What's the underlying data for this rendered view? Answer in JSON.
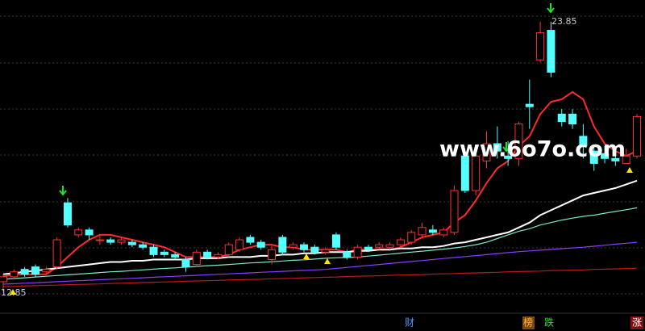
{
  "chart_data": {
    "type": "candlestick",
    "watermark": "www.6o7o.com",
    "annotations": [
      {
        "text": "23.85",
        "value": 23.85
      },
      {
        "text": "12.85",
        "value": 12.85
      }
    ],
    "footer_labels": [
      "财",
      "榜",
      "跌",
      "涨"
    ],
    "ylim": [
      11.3,
      24.73
    ],
    "up_color": "#ff3030",
    "down_color": "#54ffff",
    "candles": [
      {
        "open": 13.3,
        "high": 13.6,
        "low": 12.9,
        "close": 13.5
      },
      {
        "open": 13.5,
        "high": 13.8,
        "low": 13.4,
        "close": 13.7
      },
      {
        "open": 13.8,
        "high": 13.9,
        "low": 13.5,
        "close": 13.6
      },
      {
        "open": 13.9,
        "high": 14.0,
        "low": 13.5,
        "close": 13.6
      },
      {
        "open": 13.7,
        "high": 13.9,
        "low": 13.6,
        "close": 13.8
      },
      {
        "open": 13.9,
        "high": 15.1,
        "low": 13.8,
        "close": 15.0
      },
      {
        "open": 16.5,
        "high": 16.7,
        "low": 15.5,
        "close": 15.6
      },
      {
        "open": 15.2,
        "high": 15.5,
        "low": 15.1,
        "close": 15.4
      },
      {
        "open": 15.4,
        "high": 15.5,
        "low": 15.0,
        "close": 15.2
      },
      {
        "open": 15.0,
        "high": 15.2,
        "low": 14.8,
        "close": 15.0
      },
      {
        "open": 15.0,
        "high": 15.1,
        "low": 14.8,
        "close": 14.9
      },
      {
        "open": 14.9,
        "high": 15.1,
        "low": 14.8,
        "close": 15.0
      },
      {
        "open": 14.9,
        "high": 15.0,
        "low": 14.7,
        "close": 14.8
      },
      {
        "open": 14.8,
        "high": 14.9,
        "low": 14.6,
        "close": 14.7
      },
      {
        "open": 14.7,
        "high": 14.8,
        "low": 14.3,
        "close": 14.4
      },
      {
        "open": 14.5,
        "high": 14.6,
        "low": 14.3,
        "close": 14.4
      },
      {
        "open": 14.4,
        "high": 14.5,
        "low": 14.2,
        "close": 14.3
      },
      {
        "open": 14.2,
        "high": 14.3,
        "low": 13.7,
        "close": 13.9
      },
      {
        "open": 14.0,
        "high": 14.6,
        "low": 13.9,
        "close": 14.5
      },
      {
        "open": 14.5,
        "high": 14.6,
        "low": 14.2,
        "close": 14.3
      },
      {
        "open": 14.3,
        "high": 14.5,
        "low": 14.2,
        "close": 14.4
      },
      {
        "open": 14.4,
        "high": 14.9,
        "low": 14.3,
        "close": 14.8
      },
      {
        "open": 14.6,
        "high": 15.1,
        "low": 14.5,
        "close": 15.0
      },
      {
        "open": 15.1,
        "high": 15.2,
        "low": 14.8,
        "close": 14.9
      },
      {
        "open": 14.9,
        "high": 15.0,
        "low": 14.6,
        "close": 14.7
      },
      {
        "open": 14.2,
        "high": 14.8,
        "low": 14.0,
        "close": 14.6
      },
      {
        "open": 15.1,
        "high": 15.2,
        "low": 14.4,
        "close": 14.5
      },
      {
        "open": 14.7,
        "high": 14.9,
        "low": 14.6,
        "close": 14.8
      },
      {
        "open": 14.8,
        "high": 14.9,
        "low": 14.5,
        "close": 14.6
      },
      {
        "open": 14.7,
        "high": 14.8,
        "low": 14.4,
        "close": 14.5
      },
      {
        "open": 14.5,
        "high": 14.7,
        "low": 14.4,
        "close": 14.6
      },
      {
        "open": 15.2,
        "high": 15.3,
        "low": 14.6,
        "close": 14.7
      },
      {
        "open": 14.5,
        "high": 14.6,
        "low": 14.2,
        "close": 14.3
      },
      {
        "open": 14.3,
        "high": 14.8,
        "low": 14.2,
        "close": 14.7
      },
      {
        "open": 14.7,
        "high": 14.8,
        "low": 14.5,
        "close": 14.6
      },
      {
        "open": 14.7,
        "high": 14.9,
        "low": 14.6,
        "close": 14.8
      },
      {
        "open": 14.7,
        "high": 14.9,
        "low": 14.6,
        "close": 14.8
      },
      {
        "open": 14.8,
        "high": 15.1,
        "low": 14.7,
        "close": 15.0
      },
      {
        "open": 14.9,
        "high": 15.4,
        "low": 14.8,
        "close": 15.3
      },
      {
        "open": 15.2,
        "high": 15.7,
        "low": 15.1,
        "close": 15.5
      },
      {
        "open": 15.4,
        "high": 15.6,
        "low": 15.2,
        "close": 15.3
      },
      {
        "open": 15.2,
        "high": 15.5,
        "low": 15.1,
        "close": 15.4
      },
      {
        "open": 15.3,
        "high": 17.2,
        "low": 15.2,
        "close": 17.0
      },
      {
        "open": 18.4,
        "high": 18.5,
        "low": 16.9,
        "close": 17.0
      },
      {
        "open": 17.0,
        "high": 18.5,
        "low": 16.8,
        "close": 18.4
      },
      {
        "open": 18.2,
        "high": 19.4,
        "low": 17.9,
        "close": 18.9
      },
      {
        "open": 18.9,
        "high": 19.6,
        "low": 18.3,
        "close": 18.6
      },
      {
        "open": 18.4,
        "high": 19.0,
        "low": 18.0,
        "close": 18.3
      },
      {
        "open": 18.3,
        "high": 19.8,
        "low": 18.0,
        "close": 19.7
      },
      {
        "open": 20.5,
        "high": 21.5,
        "low": 19.5,
        "close": 20.4
      },
      {
        "open": 22.3,
        "high": 23.85,
        "low": 22.2,
        "close": 23.4
      },
      {
        "open": 23.5,
        "high": 23.85,
        "low": 21.6,
        "close": 21.8
      },
      {
        "open": 20.1,
        "high": 20.3,
        "low": 19.6,
        "close": 19.8
      },
      {
        "open": 20.1,
        "high": 20.3,
        "low": 19.5,
        "close": 19.7
      },
      {
        "open": 19.2,
        "high": 19.7,
        "low": 18.3,
        "close": 18.8
      },
      {
        "open": 18.6,
        "high": 18.8,
        "low": 17.8,
        "close": 18.1
      },
      {
        "open": 18.5,
        "high": 18.8,
        "low": 18.1,
        "close": 18.3
      },
      {
        "open": 18.3,
        "high": 18.6,
        "low": 18.0,
        "close": 18.2
      },
      {
        "open": 18.1,
        "high": 18.7,
        "low": 18.1,
        "close": 18.4
      },
      {
        "open": 18.4,
        "high": 20.1,
        "low": 18.3,
        "close": 20.0
      }
    ],
    "lines": [
      {
        "color": "#ff2a2a",
        "values": [
          13.5,
          13.6,
          13.6,
          13.6,
          13.6,
          13.9,
          14.3,
          14.7,
          15.0,
          15.2,
          15.2,
          15.1,
          15.0,
          14.9,
          14.8,
          14.7,
          14.5,
          14.3,
          14.3,
          14.3,
          14.3,
          14.4,
          14.6,
          14.7,
          14.8,
          14.8,
          14.7,
          14.7,
          14.6,
          14.6,
          14.6,
          14.6,
          14.5,
          14.6,
          14.6,
          14.6,
          14.6,
          14.7,
          14.9,
          15.1,
          15.2,
          15.3,
          15.7,
          16.0,
          16.6,
          17.3,
          17.9,
          18.2,
          18.8,
          19.2,
          20.1,
          20.6,
          20.7,
          21.0,
          20.7,
          19.6,
          18.9,
          18.6,
          18.4,
          18.6
        ]
      },
      {
        "color": "#ffffff",
        "values": [
          13.6,
          13.65,
          13.7,
          13.75,
          13.8,
          13.85,
          13.9,
          13.95,
          14.0,
          14.05,
          14.1,
          14.1,
          14.15,
          14.15,
          14.2,
          14.2,
          14.2,
          14.2,
          14.25,
          14.25,
          14.25,
          14.3,
          14.3,
          14.3,
          14.35,
          14.35,
          14.4,
          14.4,
          14.45,
          14.45,
          14.5,
          14.5,
          14.5,
          14.55,
          14.55,
          14.6,
          14.6,
          14.65,
          14.65,
          14.7,
          14.7,
          14.75,
          14.85,
          14.9,
          15.0,
          15.1,
          15.2,
          15.3,
          15.5,
          15.7,
          16.0,
          16.2,
          16.4,
          16.6,
          16.8,
          16.9,
          17.0,
          17.1,
          17.25,
          17.4
        ]
      },
      {
        "color": "#7fe8c8",
        "values": [
          13.4,
          13.43,
          13.46,
          13.49,
          13.52,
          13.55,
          13.58,
          13.61,
          13.64,
          13.67,
          13.7,
          13.72,
          13.75,
          13.78,
          13.81,
          13.84,
          13.86,
          13.89,
          13.92,
          13.95,
          13.97,
          14.0,
          14.03,
          14.06,
          14.08,
          14.11,
          14.14,
          14.17,
          14.19,
          14.22,
          14.25,
          14.27,
          14.28,
          14.3,
          14.34,
          14.38,
          14.42,
          14.46,
          14.5,
          14.54,
          14.58,
          14.62,
          14.67,
          14.73,
          14.8,
          14.9,
          15.05,
          15.2,
          15.35,
          15.45,
          15.6,
          15.7,
          15.8,
          15.88,
          15.95,
          16.0,
          16.08,
          16.15,
          16.22,
          16.3
        ]
      },
      {
        "color": "#8a3cff",
        "values": [
          13.2,
          13.22,
          13.24,
          13.26,
          13.28,
          13.3,
          13.32,
          13.34,
          13.36,
          13.38,
          13.4,
          13.42,
          13.44,
          13.46,
          13.48,
          13.5,
          13.52,
          13.54,
          13.56,
          13.58,
          13.6,
          13.62,
          13.64,
          13.66,
          13.68,
          13.7,
          13.72,
          13.74,
          13.76,
          13.78,
          13.8,
          13.84,
          13.88,
          13.92,
          13.96,
          14.0,
          14.04,
          14.08,
          14.12,
          14.16,
          14.2,
          14.24,
          14.28,
          14.32,
          14.36,
          14.4,
          14.44,
          14.48,
          14.52,
          14.55,
          14.58,
          14.61,
          14.64,
          14.67,
          14.7,
          14.74,
          14.78,
          14.82,
          14.86,
          14.9
        ]
      },
      {
        "color": "#c01818",
        "values": [
          13.1,
          13.11,
          13.13,
          13.14,
          13.15,
          13.16,
          13.18,
          13.19,
          13.2,
          13.21,
          13.23,
          13.24,
          13.25,
          13.27,
          13.28,
          13.29,
          13.3,
          13.32,
          13.33,
          13.34,
          13.35,
          13.37,
          13.38,
          13.39,
          13.4,
          13.42,
          13.43,
          13.44,
          13.46,
          13.47,
          13.48,
          13.49,
          13.51,
          13.52,
          13.53,
          13.54,
          13.56,
          13.57,
          13.58,
          13.59,
          13.61,
          13.62,
          13.63,
          13.65,
          13.66,
          13.67,
          13.68,
          13.7,
          13.71,
          13.72,
          13.73,
          13.75,
          13.76,
          13.77,
          13.78,
          13.8,
          13.81,
          13.82,
          13.84,
          13.85
        ]
      }
    ]
  }
}
